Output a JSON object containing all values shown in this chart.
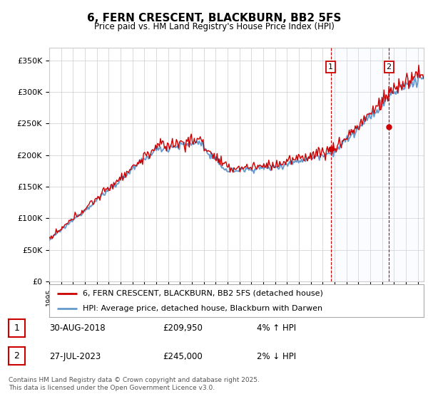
{
  "title": "6, FERN CRESCENT, BLACKBURN, BB2 5FS",
  "subtitle": "Price paid vs. HM Land Registry's House Price Index (HPI)",
  "ylabel_ticks": [
    "£0",
    "£50K",
    "£100K",
    "£150K",
    "£200K",
    "£250K",
    "£300K",
    "£350K"
  ],
  "ytick_values": [
    0,
    50000,
    100000,
    150000,
    200000,
    250000,
    300000,
    350000
  ],
  "ylim": [
    0,
    370000
  ],
  "xlim_start": 1995,
  "xlim_end": 2026.5,
  "marker1_x": 2018.67,
  "marker1_y": 209950,
  "marker2_x": 2023.57,
  "marker2_y": 245000,
  "line1_color": "#cc0000",
  "line2_color": "#6699cc",
  "marker_color": "#cc0000",
  "dashed_color": "#cc0000",
  "shade_color": "#ddeeff",
  "background_color": "#ffffff",
  "grid_color": "#cccccc",
  "legend1_label": "6, FERN CRESCENT, BLACKBURN, BB2 5FS (detached house)",
  "legend2_label": "HPI: Average price, detached house, Blackburn with Darwen",
  "marker1_date": "30-AUG-2018",
  "marker1_price": "£209,950",
  "marker1_hpi": "4% ↑ HPI",
  "marker2_date": "27-JUL-2023",
  "marker2_price": "£245,000",
  "marker2_hpi": "2% ↓ HPI",
  "footer": "Contains HM Land Registry data © Crown copyright and database right 2025.\nThis data is licensed under the Open Government Licence v3.0."
}
